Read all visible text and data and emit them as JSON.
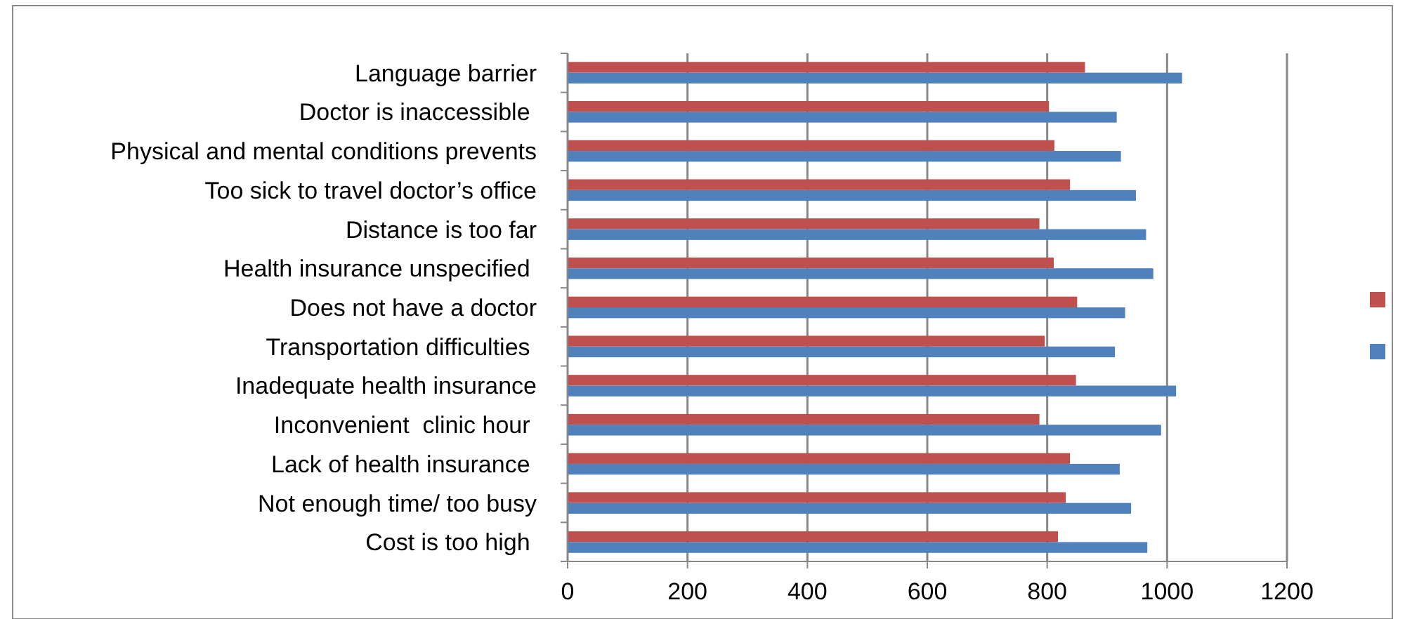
{
  "chart_data": {
    "type": "bar",
    "orientation": "horizontal",
    "categories": [
      "Language barrier",
      "Doctor is inaccessible ",
      "Physical and mental conditions prevents",
      "Too sick to travel doctor’s office",
      "Distance is too far",
      "Health insurance unspecified ",
      "Does not have a doctor",
      "Transportation difficulties ",
      "Inadequate health insurance",
      "Inconvenient  clinic hour ",
      "Lack of health insurance ",
      "Not enough time/ too busy",
      "Cost is too high "
    ],
    "series": [
      {
        "color": "#c0504d",
        "values": [
          863,
          803,
          812,
          838,
          787,
          811,
          850,
          796,
          848,
          787,
          838,
          831,
          818
        ]
      },
      {
        "color": "#4f81bd",
        "values": [
          1025,
          916,
          923,
          948,
          965,
          977,
          930,
          913,
          1015,
          990,
          921,
          940,
          967
        ]
      }
    ],
    "xlim": [
      0,
      1200
    ],
    "xticks": [
      0,
      200,
      400,
      600,
      800,
      1000,
      1200
    ],
    "grid": "x"
  }
}
